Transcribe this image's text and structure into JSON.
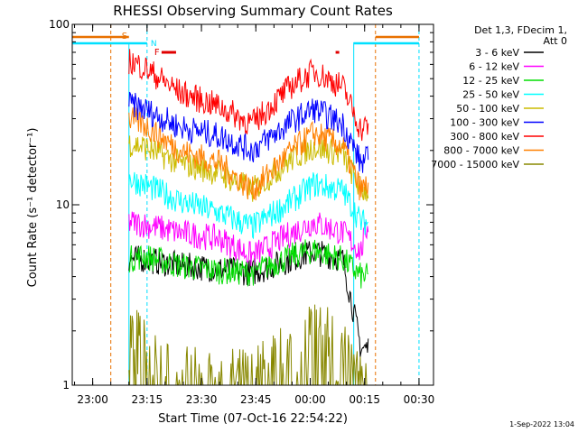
{
  "chart_data": {
    "type": "line",
    "title": "RHESSI Observing Summary Count Rates",
    "xlabel": "Start Time (07-Oct-16 22:54:22)",
    "ylabel": "Count Rate (s⁻¹ detector⁻¹)",
    "y_scale": "log",
    "ylim": [
      1,
      100
    ],
    "y_ticks": [
      "1",
      "10",
      "100"
    ],
    "xlim": [
      "22:54:22",
      "00:34:00"
    ],
    "x_ticks": [
      "23:00",
      "23:15",
      "23:30",
      "23:45",
      "00:00",
      "00:15",
      "00:30"
    ],
    "legend_title": [
      "Det 1,3, FDecim 1,",
      "Att 0"
    ],
    "legend_position": "right",
    "timestamp": "1-Sep-2022 13:04",
    "flags": [
      {
        "label": "S",
        "color": "#e87000"
      },
      {
        "label": "N",
        "color": "#00e0ff"
      },
      {
        "label": "F",
        "color": "#e00000"
      }
    ],
    "x_knots": [
      "23:10",
      "23:14",
      "23:24",
      "23:35",
      "23:44",
      "23:55",
      "00:01",
      "00:09",
      "00:14",
      "00:16"
    ],
    "series": [
      {
        "name": "3 - 6 keV",
        "color": "#000000",
        "values": [
          5.0,
          5.0,
          4.6,
          4.4,
          4.2,
          5.0,
          5.5,
          5.0,
          1.6,
          1.6
        ]
      },
      {
        "name": "6 - 12 keV",
        "color": "#ff00ff",
        "values": [
          8.0,
          7.8,
          7.0,
          6.5,
          5.2,
          7.0,
          8.0,
          7.0,
          5.5,
          8.0
        ]
      },
      {
        "name": "12 - 25 keV",
        "color": "#00dd00",
        "values": [
          5.0,
          5.2,
          4.6,
          4.3,
          4.2,
          5.2,
          5.6,
          5.0,
          4.0,
          4.0
        ]
      },
      {
        "name": "25 - 50 keV",
        "color": "#00ffff",
        "values": [
          14.0,
          13.0,
          10.5,
          9.0,
          7.5,
          10.5,
          13.0,
          12.0,
          8.0,
          8.0
        ]
      },
      {
        "name": "50 - 100 keV",
        "color": "#ccbb00",
        "values": [
          22.0,
          21.0,
          17.0,
          15.0,
          12.0,
          18.0,
          21.0,
          19.0,
          12.0,
          12.0
        ]
      },
      {
        "name": "100 - 300 keV",
        "color": "#0000ff",
        "values": [
          36.0,
          34.0,
          27.0,
          24.0,
          20.0,
          29.0,
          34.0,
          28.0,
          17.0,
          18.0
        ]
      },
      {
        "name": "300 - 800 keV",
        "color": "#ff0000",
        "values": [
          63.0,
          58.0,
          42.0,
          35.0,
          28.0,
          46.0,
          55.0,
          45.0,
          26.0,
          28.0
        ]
      },
      {
        "name": "800 - 7000 keV",
        "color": "#ff8000",
        "values": [
          30.0,
          28.0,
          20.0,
          17.0,
          12.0,
          20.0,
          25.0,
          21.0,
          12.0,
          13.0
        ]
      },
      {
        "name": "7000 - 15000 keV",
        "color": "#888800",
        "values": [
          2.0,
          1.5,
          1.0,
          1.0,
          1.0,
          1.5,
          2.0,
          1.5,
          1.0,
          1.0
        ]
      }
    ],
    "grid": false
  }
}
